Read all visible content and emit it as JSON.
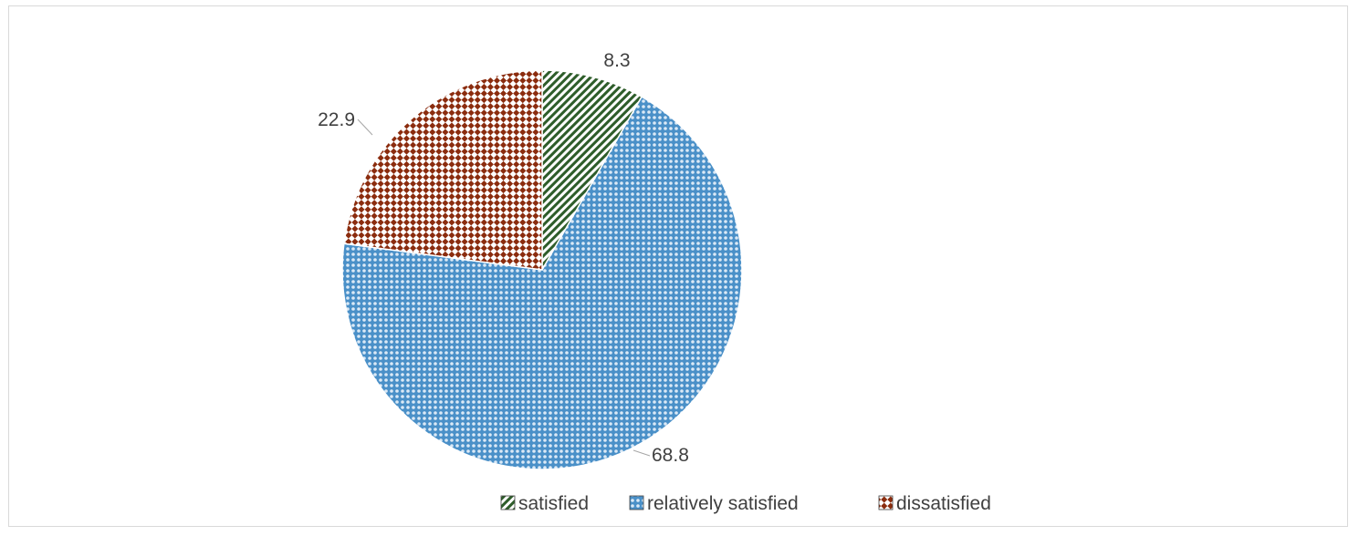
{
  "chart_data": {
    "type": "pie",
    "title": "",
    "series": [
      {
        "name": "satisfied",
        "value": 8.3,
        "label": "8.3",
        "color": "#2e5d2a",
        "pattern": "diagonal-stripes"
      },
      {
        "name": "relatively satisfied",
        "value": 68.8,
        "label": "68.8",
        "color": "#4a90c8",
        "pattern": "dots"
      },
      {
        "name": "dissatisfied",
        "value": 22.9,
        "label": "22.9",
        "color": "#8b2c0e",
        "pattern": "checker-diamond"
      }
    ],
    "legend": {
      "position": "bottom",
      "items": [
        "satisfied",
        "relatively satisfied",
        "dissatisfied"
      ]
    }
  }
}
